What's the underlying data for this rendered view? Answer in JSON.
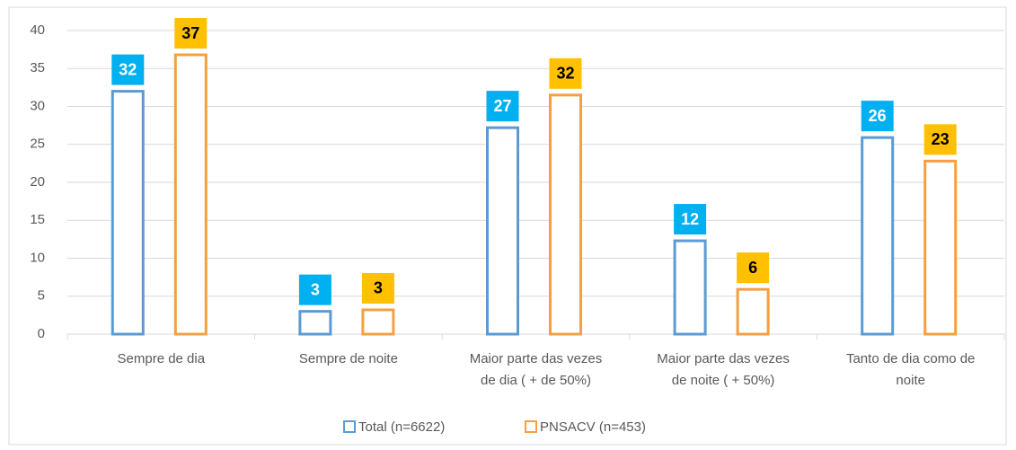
{
  "chart_data": {
    "type": "bar",
    "categories": [
      "Sempre de dia",
      "Sempre de noite",
      "Maior parte das vezes de dia ( + de 50%)",
      "Maior parte das vezes de noite ( + 50%)",
      "Tanto de dia como de noite"
    ],
    "series": [
      {
        "name": "Total (n=6622)",
        "color": "#5b9bd5",
        "label_color": "#00b0f0",
        "values": [
          32,
          3,
          27.2,
          12.3,
          25.9
        ],
        "value_labels": [
          "32",
          "3",
          "27",
          "12",
          "26"
        ]
      },
      {
        "name": "PNSACV (n=453)",
        "color": "#f4a040",
        "label_color": "#ffc000",
        "values": [
          36.8,
          3.2,
          31.5,
          5.9,
          22.8
        ],
        "value_labels": [
          "37",
          "3",
          "32",
          "6",
          "23"
        ]
      }
    ],
    "ylim": [
      0,
      40
    ],
    "yticks": [
      0,
      5,
      10,
      15,
      20,
      25,
      30,
      35,
      40
    ],
    "grid": true,
    "legend": "bottom"
  }
}
